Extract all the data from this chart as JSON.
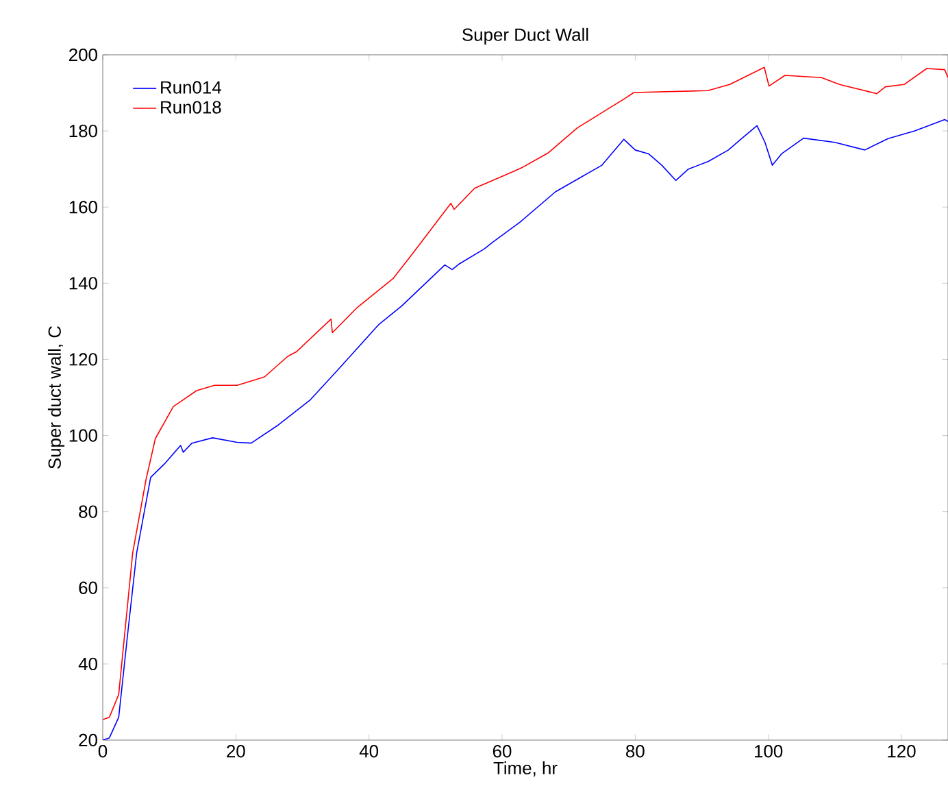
{
  "chart_data": {
    "type": "line",
    "title": "Super Duct Wall",
    "xlabel": "Time, hr",
    "ylabel": "Super duct wall, C",
    "xlim": [
      0,
      127
    ],
    "ylim": [
      20,
      200
    ],
    "xticks": [
      0,
      20,
      40,
      60,
      80,
      100,
      120
    ],
    "yticks": [
      20,
      40,
      60,
      80,
      100,
      120,
      140,
      160,
      180,
      200
    ],
    "grid": false,
    "legend": "top left",
    "marker": "none",
    "line_style": "solid",
    "series": [
      {
        "name": "Run014",
        "color": "#0000ff",
        "x": [
          0,
          1,
          2.4,
          3.8,
          5.1,
          7.2,
          9.3,
          11.7,
          12.1,
          13.4,
          16.5,
          20.2,
          22.3,
          26.4,
          31.2,
          35.3,
          41.5,
          44.9,
          51.4,
          52.5,
          53.5,
          57.3,
          58.6,
          62.8,
          68,
          72,
          75,
          78.3,
          80,
          82,
          84,
          86.1,
          88,
          91,
          94,
          96,
          98.3,
          99.5,
          100.6,
          102,
          105.3,
          110,
          114.5,
          118,
          122,
          126.5,
          127
        ],
        "values": [
          20,
          20.6,
          26,
          48.8,
          69.2,
          89,
          92.6,
          97.4,
          95.6,
          98,
          99.4,
          98.2,
          98,
          102.8,
          109.4,
          117.2,
          129.2,
          134,
          144.8,
          143.6,
          145,
          149,
          150.8,
          156.2,
          164,
          168,
          171,
          177.8,
          175,
          174,
          171,
          167,
          170,
          172,
          175,
          178,
          181.4,
          177,
          171,
          174,
          178.1,
          177,
          175,
          178,
          180,
          183,
          182.5
        ]
      },
      {
        "name": "Run018",
        "color": "#ff0000",
        "x": [
          0,
          1,
          2.4,
          4.5,
          6.5,
          7.9,
          10.6,
          14.1,
          16.8,
          20.2,
          24.3,
          27.8,
          29.1,
          34.3,
          34.5,
          38.1,
          43.6,
          46.3,
          52.3,
          52.8,
          55.9,
          58.6,
          62.8,
          66.9,
          71.3,
          78.5,
          79.8,
          90.9,
          94.2,
          99.4,
          100.1,
          102.5,
          108,
          110.7,
          116.3,
          117.6,
          120.4,
          123.8,
          126.5,
          127
        ],
        "values": [
          25.4,
          26,
          32,
          69.2,
          88.4,
          99.2,
          107.6,
          111.8,
          113.2,
          113.2,
          115.4,
          120.8,
          122,
          130.6,
          127,
          133.4,
          141.2,
          147.2,
          161,
          159.4,
          165,
          167,
          170.2,
          174.2,
          180.8,
          188.6,
          190.1,
          190.6,
          192.2,
          196.7,
          191.8,
          194.6,
          194,
          192.2,
          189.8,
          191.6,
          192.2,
          196.4,
          196.1,
          194
        ]
      }
    ]
  }
}
